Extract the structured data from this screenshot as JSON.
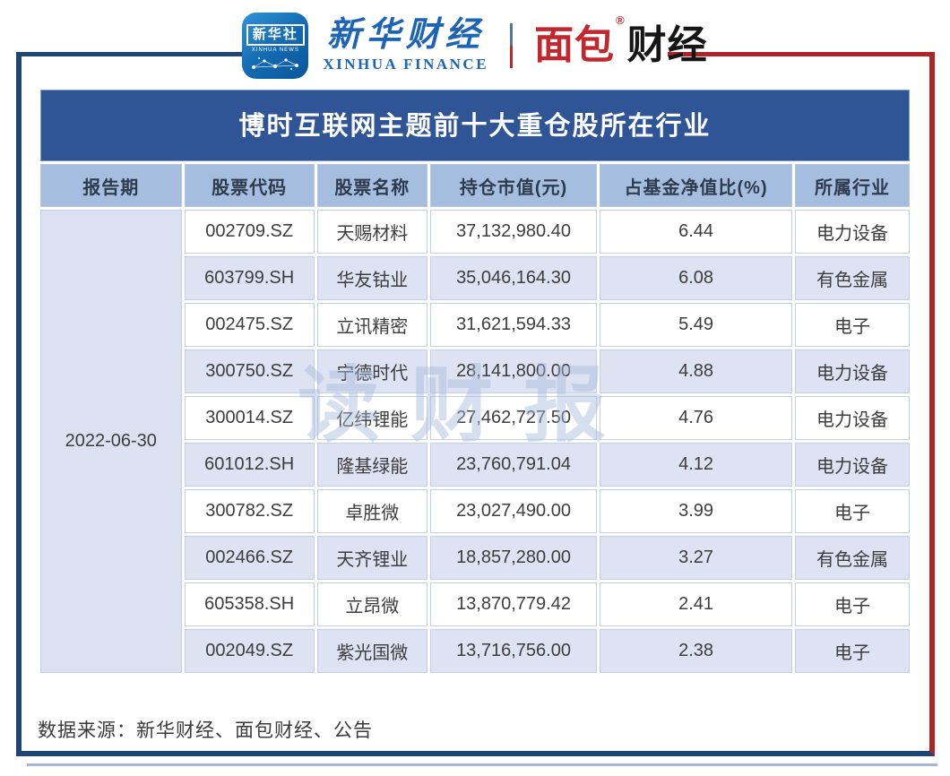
{
  "brand": {
    "xinhua_app": {
      "cn": "新华社",
      "en": "XINHUA NEWS"
    },
    "xinhua_finance": {
      "cn": "新华财经",
      "en": "XINHUA FINANCE"
    },
    "mianbao": {
      "cn_red": "面包",
      "cn_black": "财经",
      "reg": "®"
    }
  },
  "chart_data": {
    "type": "table",
    "title": "博时互联网主题前十大重仓股所在行业",
    "columns": [
      "报告期",
      "股票代码",
      "股票名称",
      "持仓市值(元)",
      "占基金净值比(%)",
      "所属行业"
    ],
    "report_period": "2022-06-30",
    "rows": [
      {
        "code": "002709.SZ",
        "name": "天赐材料",
        "value": "37,132,980.40",
        "pct": "6.44",
        "industry": "电力设备"
      },
      {
        "code": "603799.SH",
        "name": "华友钴业",
        "value": "35,046,164.30",
        "pct": "6.08",
        "industry": "有色金属"
      },
      {
        "code": "002475.SZ",
        "name": "立讯精密",
        "value": "31,621,594.33",
        "pct": "5.49",
        "industry": "电子"
      },
      {
        "code": "300750.SZ",
        "name": "宁德时代",
        "value": "28,141,800.00",
        "pct": "4.88",
        "industry": "电力设备"
      },
      {
        "code": "300014.SZ",
        "name": "亿纬锂能",
        "value": "27,462,727.50",
        "pct": "4.76",
        "industry": "电力设备"
      },
      {
        "code": "601012.SH",
        "name": "隆基绿能",
        "value": "23,760,791.04",
        "pct": "4.12",
        "industry": "电力设备"
      },
      {
        "code": "300782.SZ",
        "name": "卓胜微",
        "value": "23,027,490.00",
        "pct": "3.99",
        "industry": "电子"
      },
      {
        "code": "002466.SZ",
        "name": "天齐锂业",
        "value": "18,857,280.00",
        "pct": "3.27",
        "industry": "有色金属"
      },
      {
        "code": "605358.SH",
        "name": "立昂微",
        "value": "13,870,779.42",
        "pct": "2.41",
        "industry": "电子"
      },
      {
        "code": "002049.SZ",
        "name": "紫光国微",
        "value": "13,716,756.00",
        "pct": "2.38",
        "industry": "电子"
      }
    ]
  },
  "watermark": "读财报",
  "footer": {
    "source": "数据来源：新华财经、面包财经、公告"
  },
  "colors": {
    "title_bg": "#2F5597",
    "header_bg": "#A5BEDF",
    "row_alt_bg": "#DDE3F3",
    "period_col_bg": "#DCE1F1",
    "frame_navy": "#1F4575",
    "frame_red": "#B02428",
    "brand_blue": "#1D64B5",
    "brand_red": "#C1272D"
  }
}
